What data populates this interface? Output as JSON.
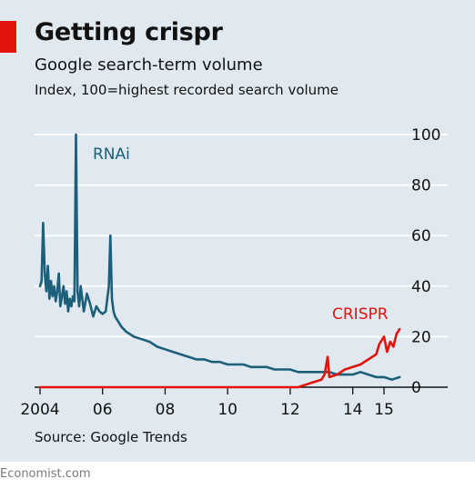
{
  "title": "Getting crispr",
  "subtitle": "Google search-term volume",
  "unit_note": "Index, 100=highest recorded search volume",
  "source": "Source: Google Trends",
  "brand": "Economist.com",
  "colors": {
    "background": "#dfe9ef",
    "rnai": "#1c5f7b",
    "crispr": "#e3120b",
    "grid": "#ffffff",
    "accent_tag": "#e3120b"
  },
  "chart_data": {
    "type": "line",
    "title": "Getting crispr",
    "subtitle": "Google search-term volume",
    "ylabel": "Index, 100=highest recorded search volume",
    "xlabel": "",
    "ylim": [
      0,
      100
    ],
    "yticks": [
      "100",
      "80",
      "60",
      "40",
      "20",
      "0"
    ],
    "ytick_values": [
      100,
      80,
      60,
      40,
      20,
      0
    ],
    "xlim": [
      2004.0,
      2015.75
    ],
    "xticks": [
      "2004",
      "06",
      "08",
      "10",
      "12",
      "14",
      "15"
    ],
    "xtick_values": [
      2004,
      2006,
      2008,
      2010,
      2012,
      2014,
      2015
    ],
    "grid": true,
    "y_axis_position": "right",
    "series": [
      {
        "name": "RNAi",
        "color": "#1c5f7b",
        "x": [
          2004.0,
          2004.05,
          2004.1,
          2004.15,
          2004.2,
          2004.25,
          2004.3,
          2004.35,
          2004.4,
          2004.45,
          2004.5,
          2004.55,
          2004.6,
          2004.65,
          2004.7,
          2004.75,
          2004.8,
          2004.85,
          2004.9,
          2004.95,
          2005.0,
          2005.05,
          2005.1,
          2005.15,
          2005.2,
          2005.25,
          2005.3,
          2005.35,
          2005.4,
          2005.5,
          2005.6,
          2005.7,
          2005.8,
          2005.9,
          2006.0,
          2006.1,
          2006.2,
          2006.25,
          2006.3,
          2006.35,
          2006.4,
          2006.5,
          2006.6,
          2006.75,
          2007.0,
          2007.25,
          2007.5,
          2007.75,
          2008.0,
          2008.25,
          2008.5,
          2008.75,
          2009.0,
          2009.25,
          2009.5,
          2009.75,
          2010.0,
          2010.25,
          2010.5,
          2010.75,
          2011.0,
          2011.25,
          2011.5,
          2011.75,
          2012.0,
          2012.25,
          2012.5,
          2012.75,
          2013.0,
          2013.25,
          2013.5,
          2013.75,
          2014.0,
          2014.25,
          2014.5,
          2014.75,
          2015.0,
          2015.25,
          2015.5
        ],
        "values": [
          40,
          42,
          65,
          45,
          38,
          48,
          35,
          42,
          36,
          40,
          34,
          38,
          45,
          32,
          36,
          40,
          33,
          38,
          30,
          35,
          32,
          36,
          34,
          100,
          38,
          32,
          40,
          35,
          30,
          37,
          33,
          28,
          32,
          30,
          29,
          30,
          40,
          60,
          35,
          30,
          28,
          26,
          24,
          22,
          20,
          19,
          18,
          16,
          15,
          14,
          13,
          12,
          11,
          11,
          10,
          10,
          9,
          9,
          9,
          8,
          8,
          8,
          7,
          7,
          7,
          6,
          6,
          6,
          6,
          6,
          5,
          5,
          5,
          6,
          5,
          4,
          4,
          3,
          4
        ]
      },
      {
        "name": "CRISPR",
        "color": "#e3120b",
        "x": [
          2004.0,
          2012.0,
          2012.25,
          2012.5,
          2012.75,
          2013.0,
          2013.1,
          2013.2,
          2013.25,
          2013.5,
          2013.75,
          2014.0,
          2014.25,
          2014.5,
          2014.75,
          2014.85,
          2015.0,
          2015.1,
          2015.2,
          2015.3,
          2015.4,
          2015.5
        ],
        "values": [
          0,
          0,
          0,
          1,
          2,
          3,
          5,
          12,
          4,
          5,
          7,
          8,
          9,
          11,
          13,
          17,
          20,
          14,
          18,
          16,
          21,
          23
        ]
      }
    ]
  }
}
